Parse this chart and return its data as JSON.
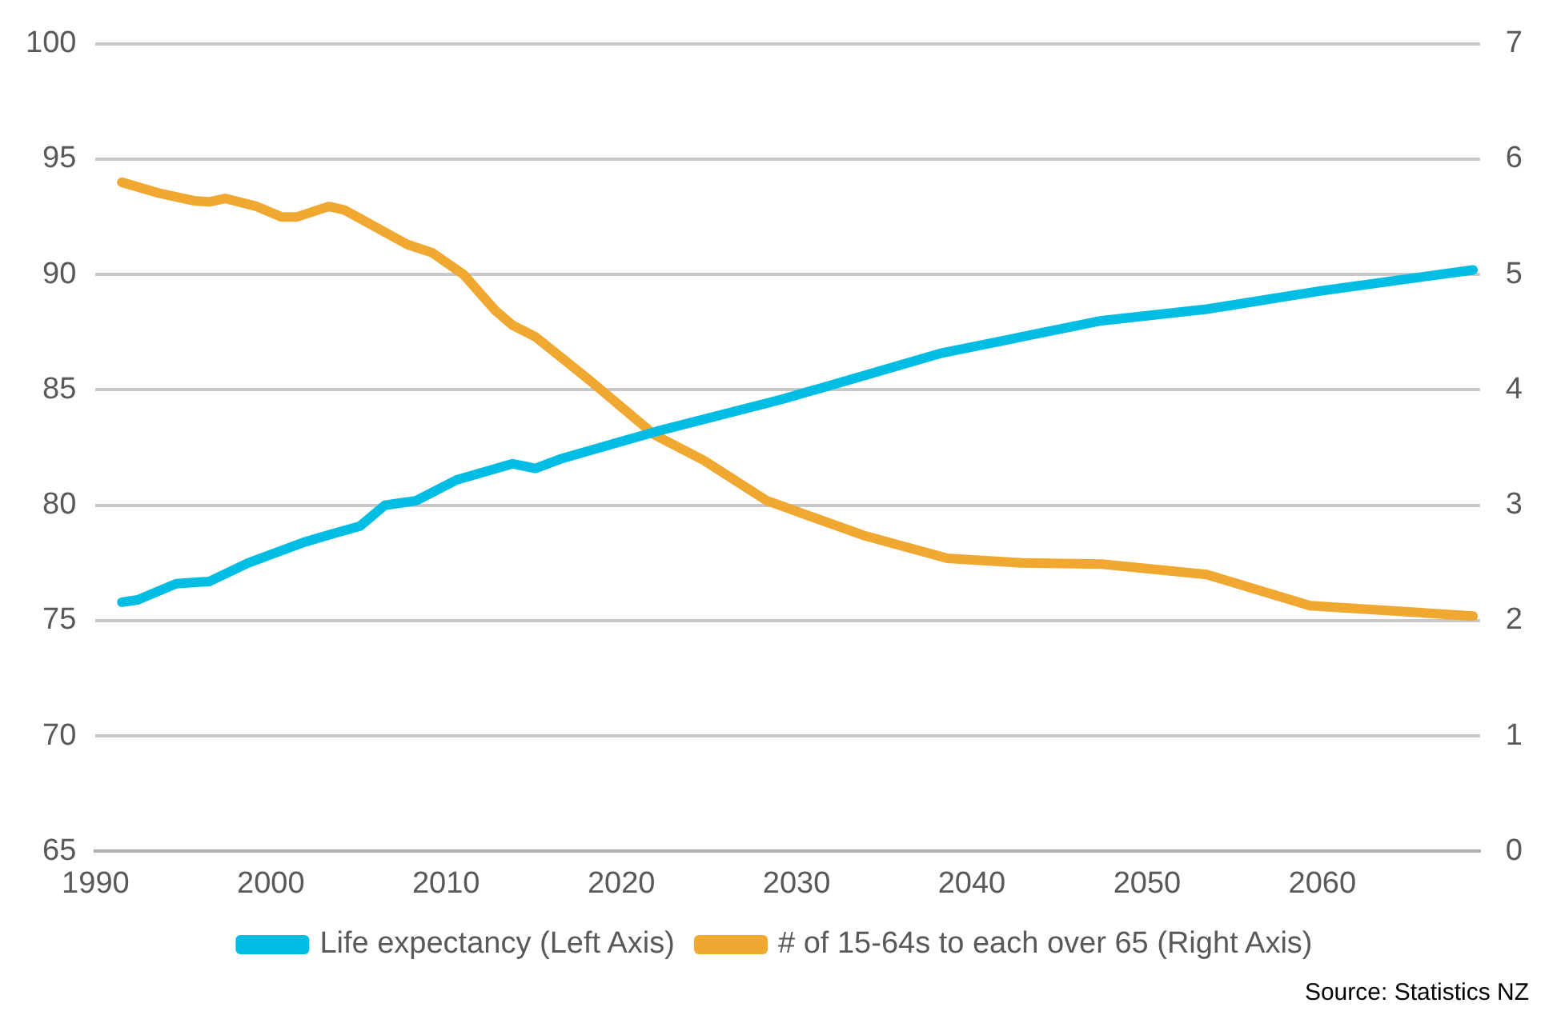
{
  "chart_data": {
    "type": "line",
    "xlim": [
      1990,
      2069
    ],
    "xticks": [
      1990,
      2000,
      2010,
      2020,
      2030,
      2040,
      2050,
      2060
    ],
    "ylim": [
      65,
      100
    ],
    "yticks": [
      65,
      70,
      75,
      80,
      85,
      90,
      95,
      100
    ],
    "y2lim": [
      0,
      7
    ],
    "y2ticks": [
      0,
      1,
      2,
      3,
      4,
      5,
      6,
      7
    ],
    "grid": "y",
    "legend": "bottom",
    "marker": "none",
    "line_style": "solid",
    "series": [
      {
        "name": "Life expectancy (Left Axis)",
        "color": "#00bde3",
        "x": [
          1991.5,
          1992.4,
          1994.6,
          1996.5,
          1998.7,
          2001.9,
          2003.7,
          2005.1,
          2006.5,
          2008.3,
          2010.6,
          2013.8,
          2015.1,
          2016.5,
          2018.8,
          2022,
          2029.2,
          2038.3,
          2047.4,
          2053.4,
          2060,
          2068.6
        ],
        "values": [
          75.8,
          75.9,
          76.6,
          76.7,
          77.5,
          78.4,
          78.8,
          79.1,
          80.0,
          80.2,
          81.1,
          81.8,
          81.6,
          82.0,
          82.5,
          83.2,
          84.6,
          86.6,
          88.0,
          88.5,
          89.3,
          90.2
        ]
      },
      {
        "name": "# of 15-64s to each over 65 (Right Axis)",
        "color": "#f0a830",
        "axis": "y2",
        "x": [
          1991.5,
          1993.5,
          1995.6,
          1996.5,
          1997.4,
          1999.2,
          2000.6,
          2001.5,
          2003.3,
          2004.2,
          2007.8,
          2009.2,
          2011.0,
          2012.8,
          2013.8,
          2015.1,
          2016.5,
          2018.3,
          2021.9,
          2024.7,
          2028.3,
          2033.8,
          2038.6,
          2042.9,
          2047.4,
          2053.4,
          2059.3,
          2068.6
        ],
        "values": [
          5.8,
          5.71,
          5.64,
          5.63,
          5.66,
          5.59,
          5.5,
          5.5,
          5.59,
          5.56,
          5.26,
          5.19,
          5.0,
          4.69,
          4.56,
          4.46,
          4.29,
          4.07,
          3.61,
          3.39,
          3.04,
          2.74,
          2.54,
          2.5,
          2.49,
          2.4,
          2.13,
          2.04
        ]
      }
    ],
    "annotations": [
      "Source: Statistics NZ"
    ]
  }
}
